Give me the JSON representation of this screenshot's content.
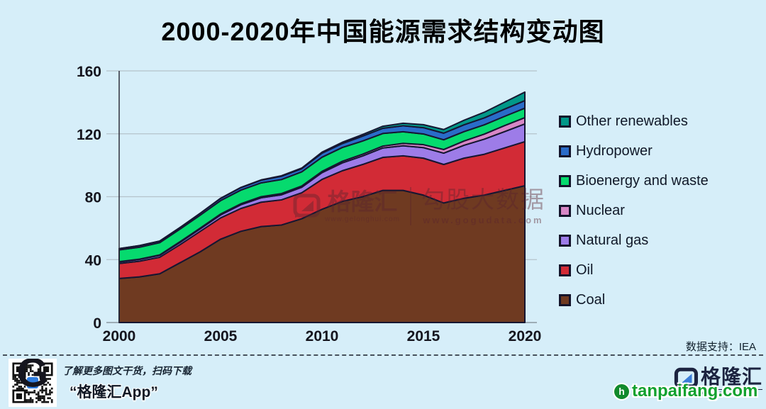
{
  "title": "2000-2020年中国能源需求结构变动图",
  "data_support": "数据支持：IEA",
  "colors": {
    "background": "#d6eef9",
    "band_stroke": "#161631",
    "grid": "#b5c3cb",
    "baseline": "#8a97a0",
    "axis": "#2e2e3a",
    "partner_green": "#12a12e",
    "qr_logo_blue": "#2f7de0"
  },
  "chart_data": {
    "type": "area",
    "stacked": true,
    "title": "2000-2020年中国能源需求结构变动图",
    "unit_note": "",
    "x": [
      2000,
      2001,
      2002,
      2003,
      2004,
      2005,
      2006,
      2007,
      2008,
      2009,
      2010,
      2011,
      2012,
      2013,
      2014,
      2015,
      2016,
      2017,
      2018,
      2019,
      2020
    ],
    "xticks": [
      "2000",
      "2005",
      "2010",
      "2015",
      "2020"
    ],
    "yticks": [
      "0",
      "40",
      "80",
      "120",
      "160"
    ],
    "ylim": [
      0,
      160
    ],
    "grid": "horizontal",
    "legend_position": "right",
    "legend_order_top_to_bottom": [
      "Other renewables",
      "Hydropower",
      "Bioenergy and waste",
      "Nuclear",
      "Natural gas",
      "Oil",
      "Coal"
    ],
    "series": [
      {
        "name": "Coal",
        "color": "#6f3a21",
        "values": [
          28,
          29,
          31,
          38,
          45,
          53,
          58,
          61,
          62,
          66,
          72,
          77,
          80,
          84,
          84,
          81,
          76,
          79,
          81,
          84,
          87
        ]
      },
      {
        "name": "Oil",
        "color": "#d22b36",
        "values": [
          9.5,
          10,
          10.5,
          11.5,
          13,
          13.5,
          14.5,
          15.5,
          16,
          16.5,
          19,
          19.5,
          20.5,
          21,
          22,
          23.5,
          24.5,
          25.5,
          26,
          27,
          28
        ]
      },
      {
        "name": "Natural gas",
        "color": "#9d7ce8",
        "values": [
          1,
          1.1,
          1.2,
          1.4,
          1.6,
          1.9,
          2.4,
          2.8,
          3.2,
          3.5,
          4.3,
          5,
          5.4,
          6,
          6.4,
          6.7,
          7.2,
          8.2,
          9.6,
          10.4,
          11.3
        ]
      },
      {
        "name": "Nuclear",
        "color": "#d887c6",
        "values": [
          0.2,
          0.2,
          0.3,
          0.5,
          0.5,
          0.6,
          0.6,
          0.7,
          0.8,
          0.8,
          0.8,
          1,
          1.1,
          1.2,
          1.5,
          1.9,
          2.3,
          2.7,
          3.2,
          3.8,
          4
        ]
      },
      {
        "name": "Bioenergy and waste",
        "color": "#06da6e",
        "values": [
          7.5,
          7.6,
          7.8,
          8,
          8.2,
          8.5,
          8.7,
          8.8,
          8.9,
          9,
          9,
          8.8,
          8.4,
          8,
          7.4,
          6.8,
          6.2,
          6,
          5.9,
          5.9,
          6
        ]
      },
      {
        "name": "Hydropower",
        "color": "#2a6cc8",
        "values": [
          0.8,
          1,
          1,
          1,
          1.2,
          1.4,
          1.6,
          1.7,
          2.1,
          2,
          2.6,
          2.5,
          3.1,
          3.3,
          3.8,
          4,
          4.2,
          4.3,
          4.4,
          4.6,
          4.8
        ]
      },
      {
        "name": "Other renewables",
        "color": "#029888",
        "values": [
          0,
          0,
          0,
          0,
          0,
          0.1,
          0.1,
          0.2,
          0.3,
          0.4,
          0.6,
          0.8,
          1,
          1.3,
          1.6,
          1.9,
          2.3,
          2.9,
          3.6,
          4.4,
          5.4
        ]
      }
    ]
  },
  "watermark": {
    "brand_initial": "G",
    "brand": "格隆汇",
    "brand_url": "www.gelonghui.com",
    "product": "勾股大数据",
    "product_url": "www.gogudata.com"
  },
  "footer": {
    "qr_caption_line1": "了解更多图文干货，扫码下载",
    "qr_caption_line2": "“格隆汇App”",
    "brand_logo_text": "格隆汇",
    "brand_logo_url": "www.gelonghui.com",
    "partner_logo_text": "tanpaifang.com",
    "partner_icon_letter": "h"
  }
}
